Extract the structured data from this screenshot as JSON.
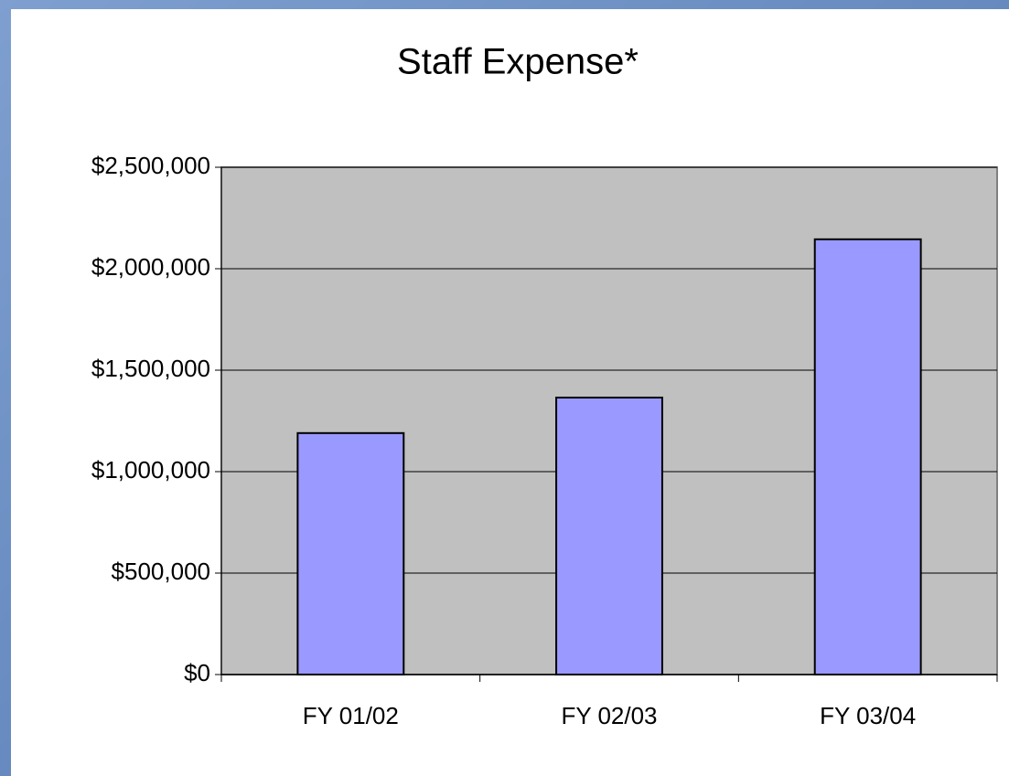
{
  "chart_data": {
    "type": "bar",
    "title": "Staff Expense*",
    "categories": [
      "FY 01/02",
      "FY 02/03",
      "FY 03/04"
    ],
    "values": [
      1190000,
      1365000,
      2145000
    ],
    "color": "#9999ff",
    "ylim": [
      0,
      2500000
    ],
    "yticks": [
      {
        "value": 0,
        "label": "$0"
      },
      {
        "value": 500000,
        "label": "$500,000"
      },
      {
        "value": 1000000,
        "label": "$1,000,000"
      },
      {
        "value": 1500000,
        "label": "$1,500,000"
      },
      {
        "value": 2000000,
        "label": "$2,000,000"
      },
      {
        "value": 2500000,
        "label": "$2,500,000"
      }
    ],
    "grid": true
  }
}
